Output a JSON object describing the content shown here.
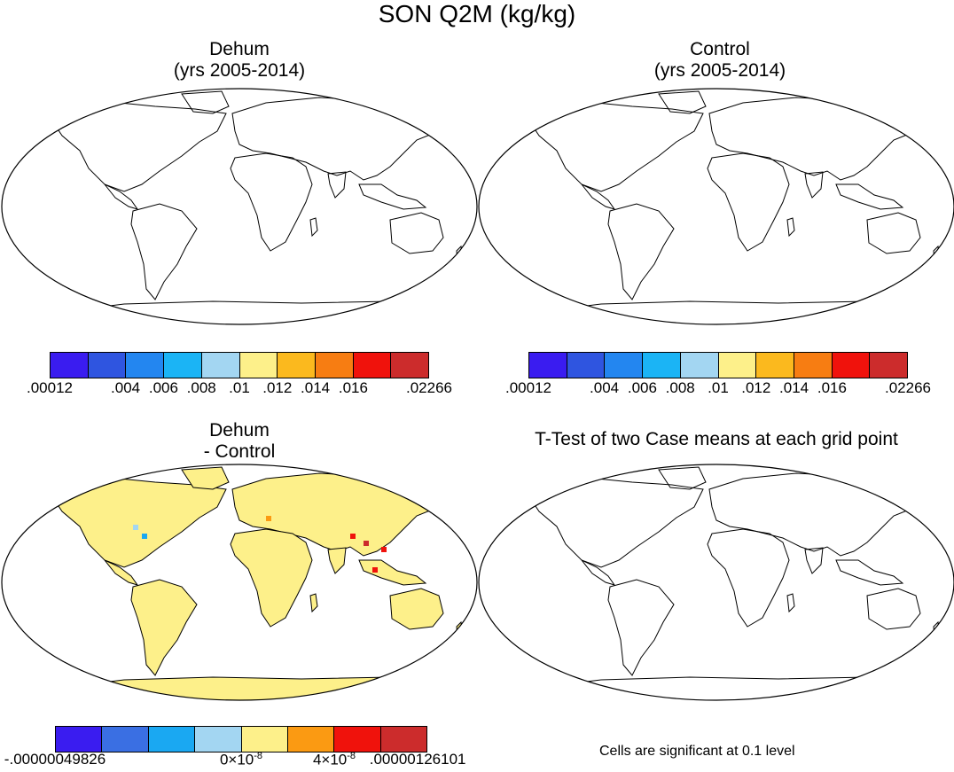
{
  "figure_title": "SON Q2M (kg/kg)",
  "panels": {
    "top_left": {
      "title_line1": "Dehum",
      "title_line2": "(yrs 2005-2014)"
    },
    "top_right": {
      "title_line1": "Control",
      "title_line2": "(yrs 2005-2014)"
    },
    "bottom_left": {
      "title_line1": "Dehum",
      "title_line2": "- Control"
    },
    "bottom_right": {
      "title": "T-Test of two Case means at each grid point",
      "note": "Cells are significant at 0.1 level"
    }
  },
  "colorbar_main": {
    "colors": [
      "#3a1cf0",
      "#2f55e0",
      "#2386f0",
      "#1bb4f5",
      "#a3d6f2",
      "#fdf08a",
      "#fbb91e",
      "#f77d12",
      "#f0120c",
      "#cc2c2c"
    ],
    "labels": [
      ".00012",
      ".004",
      ".006",
      ".008",
      ".01",
      ".012",
      ".014",
      ".016",
      ".02266"
    ]
  },
  "colorbar_diff": {
    "colors": [
      "#3a1cf0",
      "#3a6fe3",
      "#1aa8f2",
      "#a3d6f2",
      "#fdf08a",
      "#fb9a12",
      "#f0120c",
      "#cc2c2c"
    ],
    "labels": [
      "-.00000049826",
      "0×10",
      "4×10",
      ".00000126101"
    ],
    "exponent": "-8"
  },
  "map_colors": {
    "ocean": "#ffffff",
    "coastline": "#000000",
    "tropics": "#e02a20",
    "subtropics": "#fdf08a",
    "midlat": "#3c8ef0",
    "polar": "#3a1cf0",
    "diff_land": "#fdf08a"
  }
}
